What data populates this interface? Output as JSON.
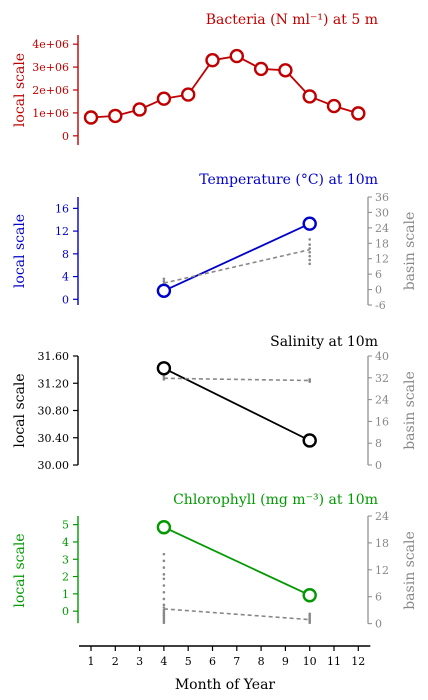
{
  "chart_data": [
    {
      "type": "line",
      "title": "Bacteria (N ml⁻¹) at 5 m",
      "color": "#c00000",
      "ylabel_left": "local scale",
      "ylabel_right": "",
      "ylim_left": [
        -400000.0,
        4400000.0
      ],
      "yticks_left": [
        0,
        1000000,
        2000000,
        3000000,
        4000000
      ],
      "ytick_labels_left": [
        "0",
        "1e+06",
        "2e+06",
        "3e+06",
        "4e+06"
      ],
      "series": [
        {
          "name": "",
          "scale": "left",
          "color": "#c00000",
          "x": [
            1,
            2,
            3,
            4,
            5,
            6,
            7,
            8,
            9,
            10,
            11,
            12
          ],
          "y": [
            800000,
            870000,
            1150000,
            1620000,
            1800000,
            3300000,
            3480000,
            2920000,
            2860000,
            1720000,
            1300000,
            980000
          ]
        }
      ],
      "basin_points": []
    },
    {
      "type": "line",
      "title": "Temperature (°C) at 10m",
      "color": "#0000cc",
      "ylabel_left": "local scale",
      "ylabel_right": "basin scale",
      "ylim_left": [
        -1,
        18
      ],
      "yticks_left": [
        0,
        4,
        8,
        12,
        16
      ],
      "ytick_labels_left": [
        "0",
        "4",
        "8",
        "12",
        "16"
      ],
      "ylim_right": [
        -6,
        36
      ],
      "yticks_right": [
        -6,
        0,
        6,
        12,
        18,
        24,
        30,
        36
      ],
      "ytick_labels_right": [
        "-6",
        "0",
        "6",
        "12",
        "18",
        "24",
        "30",
        "36"
      ],
      "series": [
        {
          "name": "",
          "scale": "left",
          "color": "#0000cc",
          "x": [
            4,
            10
          ],
          "y": [
            1.5,
            13.3
          ]
        },
        {
          "name": "",
          "scale": "right",
          "color": "#888888",
          "dashed": true,
          "x": [
            4,
            10
          ],
          "y": [
            2.5,
            15.5
          ]
        }
      ],
      "basin_points": [
        {
          "x": 4,
          "y": [
            1.5,
            2.4,
            3.3,
            4.2
          ]
        },
        {
          "x": 10,
          "y": [
            10.0,
            11.5,
            13.0,
            14.5,
            16.0,
            17.5,
            19.5
          ]
        }
      ]
    },
    {
      "type": "line",
      "title": "Salinity at 10m",
      "color": "#000000",
      "ylabel_left": "local scale",
      "ylabel_right": "basin scale",
      "ylim_left": [
        30.0,
        31.6
      ],
      "yticks_left": [
        30.0,
        30.4,
        30.8,
        31.2,
        31.6
      ],
      "ytick_labels_left": [
        "30.00",
        "30.40",
        "30.80",
        "31.20",
        "31.60"
      ],
      "ylim_right": [
        0,
        40
      ],
      "yticks_right": [
        0,
        8,
        16,
        24,
        32,
        40
      ],
      "ytick_labels_right": [
        "0",
        "8",
        "16",
        "24",
        "32",
        "40"
      ],
      "series": [
        {
          "name": "",
          "scale": "left",
          "color": "#000000",
          "x": [
            4,
            10
          ],
          "y": [
            31.42,
            30.36
          ]
        },
        {
          "name": "",
          "scale": "right",
          "color": "#888888",
          "dashed": true,
          "x": [
            4,
            10
          ],
          "y": [
            31.8,
            31.0
          ]
        }
      ],
      "basin_points": [
        {
          "x": 4,
          "y": [
            31.4,
            32.0,
            32.6
          ]
        },
        {
          "x": 10,
          "y": [
            30.6,
            31.0,
            31.4
          ]
        }
      ]
    },
    {
      "type": "line",
      "title": "Chlorophyll (mg m⁻³) at 10m",
      "color": "#009900",
      "ylabel_left": "local scale",
      "ylabel_right": "basin scale",
      "ylim_left": [
        -0.8,
        5.5
      ],
      "yticks_left": [
        0,
        1,
        2,
        3,
        4,
        5
      ],
      "ytick_labels_left": [
        "0",
        "1",
        "2",
        "3",
        "4",
        "5"
      ],
      "ylim_right": [
        -0.3,
        24
      ],
      "yticks_right": [
        0,
        6,
        12,
        18,
        24
      ],
      "ytick_labels_right": [
        "0",
        "6",
        "12",
        "18",
        "24"
      ],
      "series": [
        {
          "name": "",
          "scale": "left",
          "color": "#009900",
          "x": [
            4,
            10
          ],
          "y": [
            4.85,
            0.92
          ]
        },
        {
          "name": "",
          "scale": "right",
          "color": "#888888",
          "dashed": true,
          "x": [
            4,
            10
          ],
          "y": [
            3.3,
            0.9
          ]
        }
      ],
      "basin_points": [
        {
          "x": 4,
          "y": [
            0.2,
            0.6,
            1.0,
            1.4,
            1.8,
            2.2,
            2.6,
            3.0,
            3.6,
            4.2,
            5.5,
            7.0,
            8.5,
            10.0,
            11.0,
            12.5,
            14.0,
            15.5
          ]
        },
        {
          "x": 10,
          "y": [
            0.2,
            0.6,
            1.0,
            1.4,
            1.8,
            2.2
          ]
        }
      ]
    }
  ],
  "x_axis": {
    "label": "Month of Year",
    "ticks": [
      1,
      2,
      3,
      4,
      5,
      6,
      7,
      8,
      9,
      10,
      11,
      12
    ],
    "tick_labels": [
      "1",
      "2",
      "3",
      "4",
      "5",
      "6",
      "7",
      "8",
      "9",
      "10",
      "11",
      "12"
    ]
  }
}
